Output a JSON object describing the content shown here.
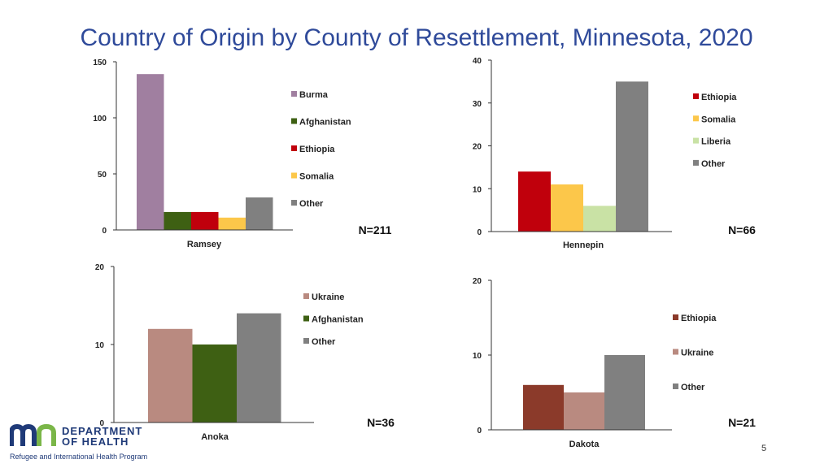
{
  "title": "Country of Origin by County of Resettlement, Minnesota, 2020",
  "branding": {
    "line1": "DEPARTMENT",
    "line2": "OF HEALTH",
    "program": "Refugee and International Health Program"
  },
  "page_number": "5",
  "colors": {
    "Burma": "#a07fa0",
    "Afghanistan": "#3e6013",
    "Ethiopia_red": "#c0000c",
    "Somalia": "#fcc74a",
    "Other": "#808080",
    "Liberia": "#c9e2a5",
    "Ukraine": "#b98a80",
    "Ethiopia_brown": "#8b3a2a"
  },
  "chart_data": [
    {
      "type": "bar",
      "title": "",
      "xlabel": "",
      "ylabel": "",
      "categories": [
        "Ramsey"
      ],
      "series": [
        {
          "name": "Burma",
          "values": [
            139
          ],
          "color": "#a07fa0"
        },
        {
          "name": "Afghanistan",
          "values": [
            16
          ],
          "color": "#3e6013"
        },
        {
          "name": "Ethiopia",
          "values": [
            16
          ],
          "color": "#c0000c"
        },
        {
          "name": "Somalia",
          "values": [
            11
          ],
          "color": "#fcc74a"
        },
        {
          "name": "Other",
          "values": [
            29
          ],
          "color": "#808080"
        }
      ],
      "ylim": [
        0,
        150
      ],
      "yticks": [
        0,
        50,
        100,
        150
      ],
      "n_label": "N=211",
      "legend": "right"
    },
    {
      "type": "bar",
      "title": "",
      "xlabel": "",
      "ylabel": "",
      "categories": [
        "Hennepin"
      ],
      "series": [
        {
          "name": "Ethiopia",
          "values": [
            14
          ],
          "color": "#c0000c"
        },
        {
          "name": "Somalia",
          "values": [
            11
          ],
          "color": "#fcc74a"
        },
        {
          "name": "Liberia",
          "values": [
            6
          ],
          "color": "#c9e2a5"
        },
        {
          "name": "Other",
          "values": [
            35
          ],
          "color": "#808080"
        }
      ],
      "ylim": [
        0,
        40
      ],
      "yticks": [
        0,
        10,
        20,
        30,
        40
      ],
      "n_label": "N=66",
      "legend": "right"
    },
    {
      "type": "bar",
      "title": "",
      "xlabel": "",
      "ylabel": "",
      "categories": [
        "Anoka"
      ],
      "series": [
        {
          "name": "Ukraine",
          "values": [
            12
          ],
          "color": "#b98a80"
        },
        {
          "name": "Afghanistan",
          "values": [
            10
          ],
          "color": "#3e6013"
        },
        {
          "name": "Other",
          "values": [
            14
          ],
          "color": "#808080"
        }
      ],
      "ylim": [
        0,
        20
      ],
      "yticks": [
        0,
        10,
        20
      ],
      "n_label": "N=36",
      "legend": "right"
    },
    {
      "type": "bar",
      "title": "",
      "xlabel": "",
      "ylabel": "",
      "categories": [
        "Dakota"
      ],
      "series": [
        {
          "name": "Ethiopia",
          "values": [
            6
          ],
          "color": "#8b3a2a"
        },
        {
          "name": "Ukraine",
          "values": [
            5
          ],
          "color": "#b98a80"
        },
        {
          "name": "Other",
          "values": [
            10
          ],
          "color": "#808080"
        }
      ],
      "ylim": [
        0,
        20
      ],
      "yticks": [
        0,
        10,
        20
      ],
      "n_label": "N=21",
      "legend": "right"
    }
  ]
}
